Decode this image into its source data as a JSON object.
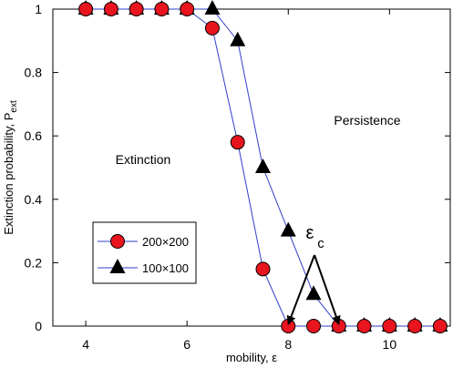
{
  "chart_data": {
    "type": "line",
    "xlabel": "mobility, ε",
    "ylabel_main": "Extinction probability, P",
    "ylabel_sub": "ext",
    "xlim": [
      3.35,
      11.2
    ],
    "ylim": [
      0,
      1
    ],
    "xticks": [
      4,
      6,
      8,
      10
    ],
    "yticks": [
      0,
      0.2,
      0.4,
      0.6,
      0.8,
      1
    ],
    "ytick_labels": [
      "0",
      "0.2",
      "0.4",
      "0.6",
      "0.8",
      "1"
    ],
    "grid": false,
    "legend_position": "lower-left",
    "series": [
      {
        "name": "200×200",
        "marker": "circle",
        "marker_color": "#e8141e",
        "line_color": "#2e3fc9",
        "x": [
          4,
          4.5,
          5,
          5.5,
          6,
          6.5,
          7,
          7.5,
          8,
          8.5,
          9,
          9.5,
          10,
          10.5,
          11
        ],
        "y": [
          1,
          1,
          1,
          1,
          1,
          0.94,
          0.58,
          0.18,
          0,
          0,
          0,
          0,
          0,
          0,
          0
        ]
      },
      {
        "name": "100×100",
        "marker": "triangle",
        "marker_color": "#000000",
        "line_color": "#2e3fc9",
        "x": [
          4,
          4.5,
          5,
          5.5,
          6,
          6.5,
          7,
          7.5,
          8,
          8.5,
          9,
          9.5,
          10,
          10.5,
          11
        ],
        "y": [
          1,
          1,
          1,
          1,
          1,
          1,
          0.9,
          0.5,
          0.3,
          0.1,
          0,
          0,
          0,
          0,
          0
        ]
      }
    ],
    "annotations": {
      "region_left": "Extinction",
      "region_right": "Persistence",
      "critical_main": "ε",
      "critical_sub": "c",
      "arrow_targets_x": [
        8,
        9
      ]
    }
  }
}
